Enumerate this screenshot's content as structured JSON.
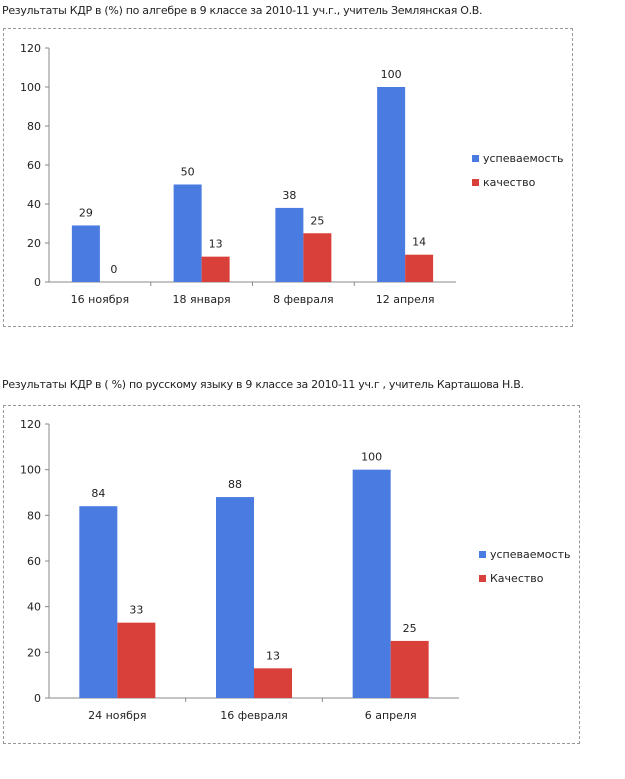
{
  "chart_data": [
    {
      "type": "bar",
      "title": "Результаты КДР  в  (%) по алгебре в 9 классе за 2010-11 уч.г., учитель Землянская О.В.",
      "categories": [
        "16 ноября",
        "18 января",
        "8 февраля",
        "12 апреля"
      ],
      "series": [
        {
          "name": "успеваемость",
          "values": [
            29,
            50,
            38,
            100
          ],
          "color": "#4a7be0"
        },
        {
          "name": "качество",
          "values": [
            0,
            13,
            25,
            14
          ],
          "color": "#d9403a"
        }
      ],
      "ylim": [
        0,
        120
      ],
      "yticks": [
        "0",
        "20",
        "40",
        "60",
        "80",
        "100",
        "120"
      ],
      "legend": "right",
      "grid": false
    },
    {
      "type": "bar",
      "title": "Результаты КДР в ( %) по русскому языку в 9 классе за 2010-11 уч.г , учитель Карташова Н.В.",
      "categories": [
        "24 ноября",
        "16 февраля",
        "6 апреля"
      ],
      "series": [
        {
          "name": "успеваемость",
          "values": [
            84,
            88,
            100
          ],
          "color": "#4a7be0"
        },
        {
          "name": "Качество",
          "values": [
            33,
            13,
            25
          ],
          "color": "#d9403a"
        }
      ],
      "ylim": [
        0,
        120
      ],
      "yticks": [
        "0",
        "20",
        "40",
        "60",
        "80",
        "100",
        "120"
      ],
      "legend": "right",
      "grid": false
    }
  ]
}
